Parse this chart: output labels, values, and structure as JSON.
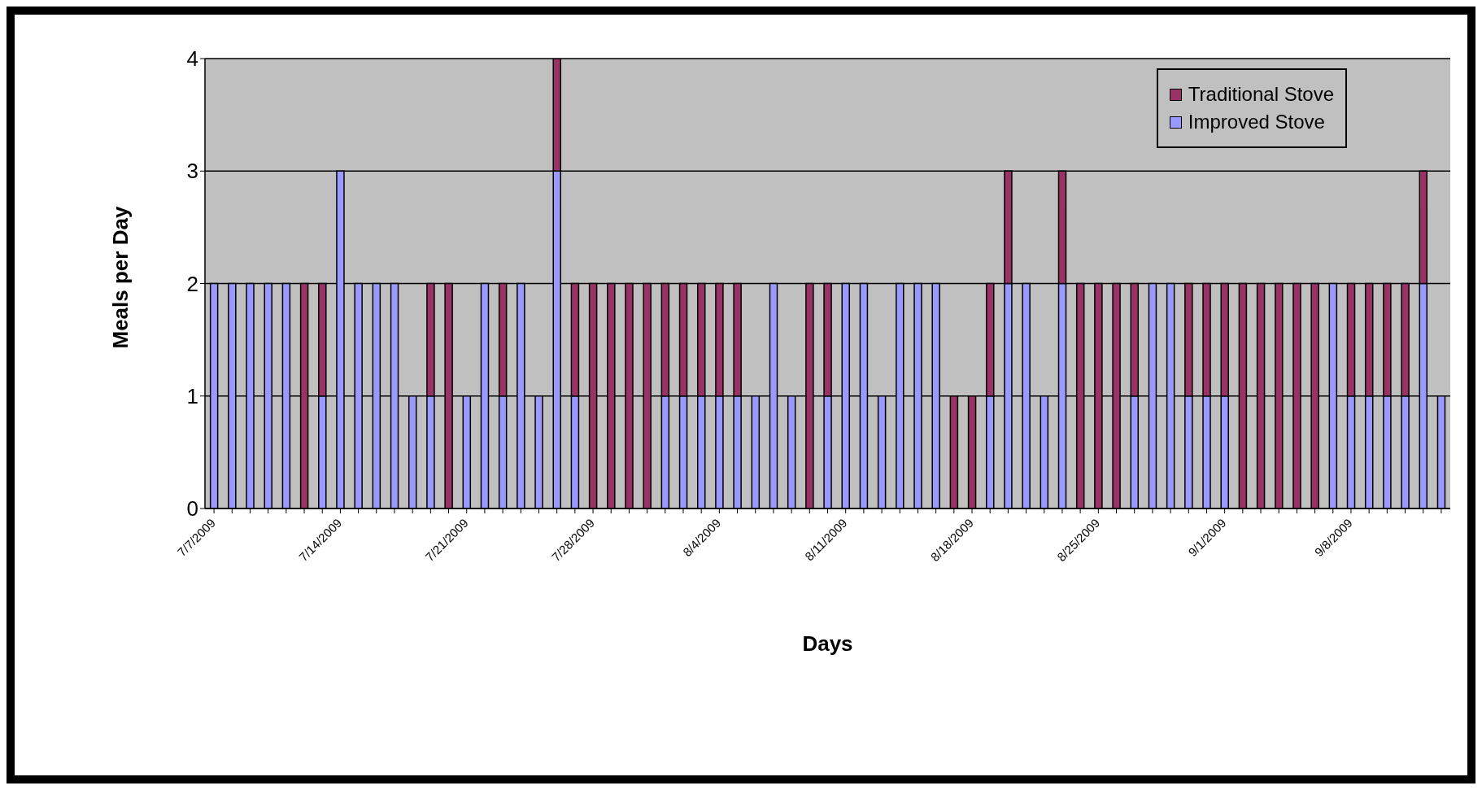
{
  "chart_data": {
    "type": "bar",
    "stacked": true,
    "xlabel": "Days",
    "ylabel": "Meals per Day",
    "categories": [
      "7/7/2009",
      null,
      null,
      null,
      null,
      null,
      null,
      "7/14/2009",
      null,
      null,
      null,
      null,
      null,
      null,
      "7/21/2009",
      null,
      null,
      null,
      null,
      null,
      null,
      "7/28/2009",
      null,
      null,
      null,
      null,
      null,
      null,
      "8/4/2009",
      null,
      null,
      null,
      null,
      null,
      null,
      "8/11/2009",
      null,
      null,
      null,
      null,
      null,
      null,
      "8/18/2009",
      null,
      null,
      null,
      null,
      null,
      null,
      "8/25/2009",
      null,
      null,
      null,
      null,
      null,
      null,
      "9/1/2009",
      null,
      null,
      null,
      null,
      null,
      null,
      "9/8/2009",
      null,
      null,
      null,
      null,
      null
    ],
    "series": [
      {
        "name": "Improved Stove",
        "color": "#9999ff",
        "values": [
          2,
          2,
          2,
          2,
          2,
          0,
          1,
          3,
          2,
          2,
          2,
          1,
          1,
          0,
          1,
          2,
          1,
          2,
          1,
          3,
          1,
          0,
          0,
          0,
          0,
          1,
          1,
          1,
          1,
          1,
          1,
          2,
          1,
          0,
          1,
          2,
          2,
          1,
          2,
          2,
          2,
          0,
          0,
          1,
          2,
          2,
          1,
          2,
          0,
          0,
          0,
          1,
          2,
          2,
          1,
          1,
          1,
          0,
          0,
          0,
          0,
          0,
          2,
          1,
          1,
          1,
          1,
          2,
          1
        ]
      },
      {
        "name": "Traditional Stove",
        "color": "#993366",
        "values": [
          0,
          0,
          0,
          0,
          0,
          2,
          1,
          0,
          0,
          0,
          0,
          0,
          1,
          2,
          0,
          0,
          1,
          0,
          0,
          1,
          1,
          2,
          2,
          2,
          2,
          1,
          1,
          1,
          1,
          1,
          0,
          0,
          0,
          2,
          1,
          0,
          0,
          0,
          0,
          0,
          0,
          1,
          1,
          1,
          1,
          0,
          0,
          1,
          2,
          2,
          2,
          1,
          0,
          0,
          1,
          1,
          1,
          2,
          2,
          2,
          2,
          2,
          0,
          1,
          1,
          1,
          1,
          1,
          0
        ]
      }
    ],
    "ylim": [
      0,
      4
    ],
    "yticks": [
      0,
      1,
      2,
      3,
      4
    ],
    "grid": "y",
    "legend": "top right"
  }
}
